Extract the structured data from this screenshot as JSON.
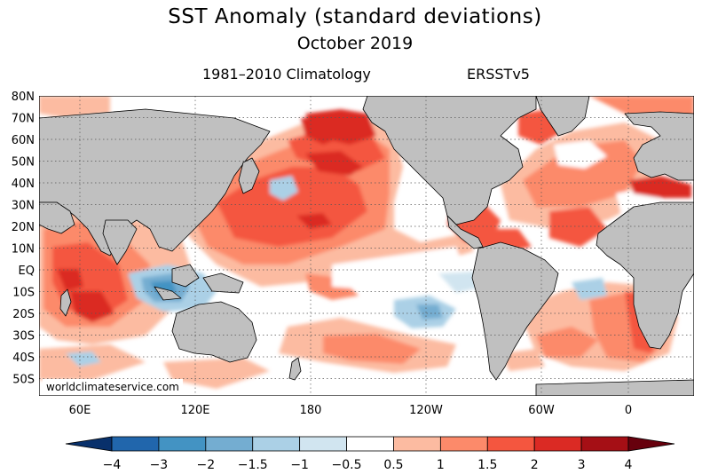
{
  "title": "SST Anomaly (standard deviations)",
  "date": "October 2019",
  "climatology": "1981–2010 Climatology",
  "dataset": "ERSSTv5",
  "watermark": "worldclimateservice.com",
  "lat_labels": [
    "80N",
    "70N",
    "60N",
    "50N",
    "40N",
    "30N",
    "20N",
    "10N",
    "EQ",
    "10S",
    "20S",
    "30S",
    "40S",
    "50S"
  ],
  "lon_labels": [
    "60E",
    "120E",
    "180",
    "120W",
    "60W",
    "0"
  ],
  "colorbar": {
    "ticks": [
      "−4",
      "−3",
      "−2",
      "−1.5",
      "−1",
      "−0.5",
      "0.5",
      "1",
      "1.5",
      "2",
      "3",
      "4"
    ],
    "colors": [
      "#08306b",
      "#2166ac",
      "#4393c3",
      "#74add1",
      "#abd0e6",
      "#d1e5f0",
      "#ffffff",
      "#fcbba1",
      "#fc8a6a",
      "#f4563f",
      "#db2a24",
      "#a50f15",
      "#67000d"
    ]
  },
  "colors": {
    "land": "#c0c0c0",
    "ocean_neutral": "#ffffff"
  }
}
